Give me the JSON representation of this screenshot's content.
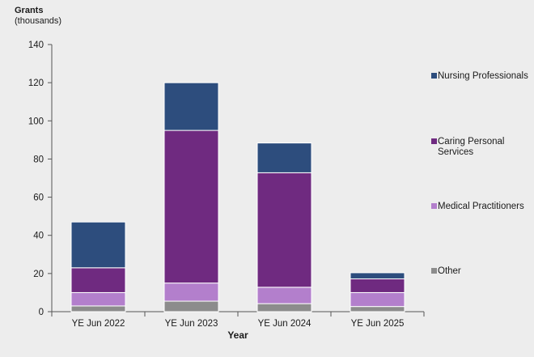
{
  "chart_data": {
    "type": "bar",
    "stacked": true,
    "title": "",
    "ylabel": "Grants",
    "ylabel_sub": "(thousands)",
    "xlabel": "Year",
    "categories": [
      "YE Jun 2022",
      "YE Jun 2023",
      "YE Jun 2024",
      "YE Jun 2025"
    ],
    "ylim": [
      0,
      140
    ],
    "yticks": [
      0,
      20,
      40,
      60,
      80,
      100,
      120,
      140
    ],
    "grid": false,
    "legend_position": "right",
    "series": [
      {
        "name": "Other",
        "color": "#8c8c8c",
        "values": [
          3,
          5.5,
          4.2,
          2.7
        ]
      },
      {
        "name": "Medical Practitioners",
        "color": "#b37fcc",
        "values": [
          7,
          9.5,
          8.6,
          7.3
        ]
      },
      {
        "name": "Caring Personal Services",
        "color": "#6f2a80",
        "values": [
          13,
          80,
          60,
          7.2
        ]
      },
      {
        "name": "Nursing Professionals",
        "color": "#2d4d7d",
        "values": [
          24,
          25,
          15.6,
          3.2
        ]
      }
    ]
  }
}
